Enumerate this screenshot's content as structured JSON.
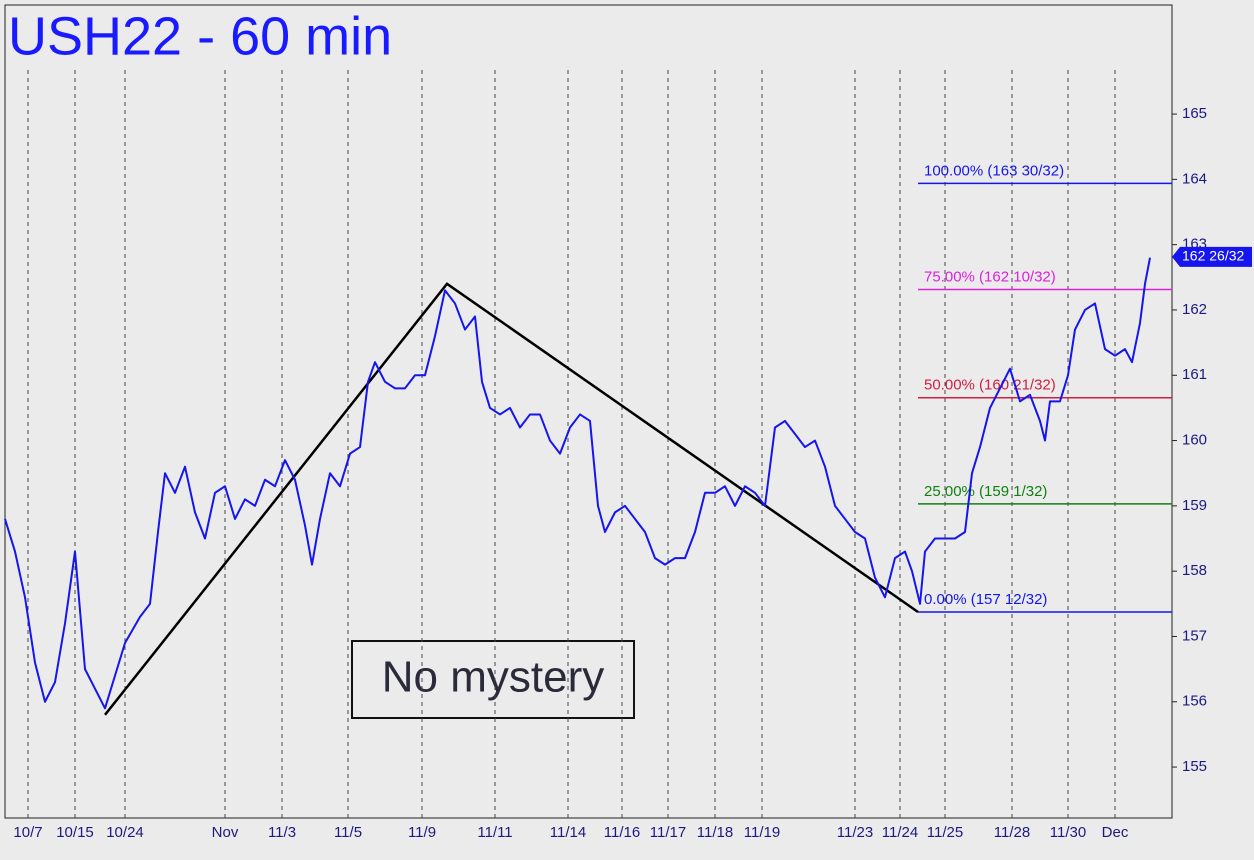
{
  "chart_data": {
    "type": "line",
    "title": "USH22 - 60 min",
    "annotation": "No mystery",
    "xlim": [
      5,
      1172
    ],
    "ylim": [
      154.22,
      166.67
    ],
    "yticks": [
      155,
      156,
      157,
      158,
      159,
      160,
      161,
      162,
      163,
      164,
      165
    ],
    "xticks": [
      {
        "value": 28,
        "label": "10/7"
      },
      {
        "value": 75,
        "label": "10/15"
      },
      {
        "value": 125,
        "label": "10/24"
      },
      {
        "value": 225,
        "label": "Nov"
      },
      {
        "value": 282,
        "label": "11/3"
      },
      {
        "value": 348,
        "label": "11/5"
      },
      {
        "value": 422,
        "label": "11/9"
      },
      {
        "value": 495,
        "label": "11/11"
      },
      {
        "value": 568,
        "label": "11/14"
      },
      {
        "value": 622,
        "label": "11/16"
      },
      {
        "value": 668,
        "label": "11/17"
      },
      {
        "value": 715,
        "label": "11/18"
      },
      {
        "value": 762,
        "label": "11/19"
      },
      {
        "value": 855,
        "label": "11/23"
      },
      {
        "value": 900,
        "label": "11/24"
      },
      {
        "value": 945,
        "label": "11/25"
      },
      {
        "value": 1012,
        "label": "11/28"
      },
      {
        "value": 1068,
        "label": "11/30"
      },
      {
        "value": 1115,
        "label": "Dec"
      }
    ],
    "x": [
      5,
      15,
      25,
      35,
      45,
      55,
      65,
      75,
      85,
      95,
      105,
      115,
      125,
      140,
      150,
      158,
      165,
      175,
      185,
      195,
      205,
      215,
      225,
      235,
      245,
      255,
      265,
      275,
      285,
      295,
      305,
      312,
      320,
      330,
      340,
      350,
      360,
      368,
      375,
      385,
      395,
      405,
      415,
      425,
      435,
      445,
      455,
      465,
      475,
      482,
      490,
      500,
      510,
      520,
      530,
      540,
      550,
      560,
      570,
      580,
      590,
      598,
      605,
      615,
      625,
      635,
      645,
      655,
      665,
      675,
      685,
      695,
      705,
      715,
      725,
      735,
      745,
      755,
      765,
      775,
      785,
      795,
      805,
      815,
      825,
      835,
      845,
      855,
      865,
      875,
      885,
      895,
      905,
      912,
      920,
      925,
      935,
      945,
      955,
      965,
      972,
      980,
      990,
      1000,
      1010,
      1020,
      1030,
      1040,
      1045,
      1050,
      1060,
      1068,
      1075,
      1085,
      1095,
      1105,
      1115,
      1125,
      1132,
      1140,
      1145,
      1150
    ],
    "series": [
      {
        "name": "USH22",
        "color": "#1515ee",
        "values": [
          158.8,
          158.3,
          157.6,
          156.6,
          156.0,
          156.3,
          157.2,
          158.3,
          156.5,
          156.2,
          155.9,
          156.4,
          156.9,
          157.3,
          157.5,
          158.6,
          159.5,
          159.2,
          159.6,
          158.9,
          158.5,
          159.2,
          159.3,
          158.8,
          159.1,
          159.0,
          159.4,
          159.3,
          159.7,
          159.4,
          158.7,
          158.1,
          158.8,
          159.5,
          159.3,
          159.8,
          159.9,
          160.9,
          161.2,
          160.9,
          160.8,
          160.8,
          161.0,
          161.0,
          161.6,
          162.3,
          162.1,
          161.7,
          161.9,
          160.9,
          160.5,
          160.4,
          160.5,
          160.2,
          160.4,
          160.4,
          160.0,
          159.8,
          160.2,
          160.4,
          160.3,
          159.0,
          158.6,
          158.9,
          159.0,
          158.8,
          158.6,
          158.2,
          158.1,
          158.2,
          158.2,
          158.6,
          159.2,
          159.2,
          159.3,
          159.0,
          159.3,
          159.2,
          159.0,
          160.2,
          160.3,
          160.1,
          159.9,
          160.0,
          159.6,
          159.0,
          158.8,
          158.6,
          158.5,
          157.9,
          157.6,
          158.2,
          158.3,
          158.0,
          157.5,
          158.3,
          158.5,
          158.5,
          158.5,
          158.6,
          159.5,
          159.9,
          160.5,
          160.8,
          161.1,
          160.6,
          160.7,
          160.3,
          160.0,
          160.6,
          160.6,
          161.0,
          161.7,
          162.0,
          162.1,
          161.4,
          161.3,
          161.4,
          161.2,
          161.8,
          162.4,
          162.8
        ]
      }
    ],
    "trendline": {
      "x": [
        105,
        447,
        918
      ],
      "values": [
        155.8,
        162.4,
        157.375
      ]
    },
    "fib_levels": [
      {
        "label": "100.00% (163 30/32)",
        "value": 163.9375,
        "color": "#1515ee"
      },
      {
        "label": "75.00% (162 10/32)",
        "value": 162.3125,
        "color": "#e020e0"
      },
      {
        "label": "50.00% (160 21/32)",
        "value": 160.65625,
        "color": "#d02040"
      },
      {
        "label": "25.00% (159 1/32)",
        "value": 159.03125,
        "color": "#108010"
      },
      {
        "label": "0.00% (157 12/32)",
        "value": 157.375,
        "color": "#1515ee"
      }
    ],
    "fib_start_x": 918,
    "last_price": {
      "value": 162.8125,
      "label": "162 26/32"
    }
  }
}
